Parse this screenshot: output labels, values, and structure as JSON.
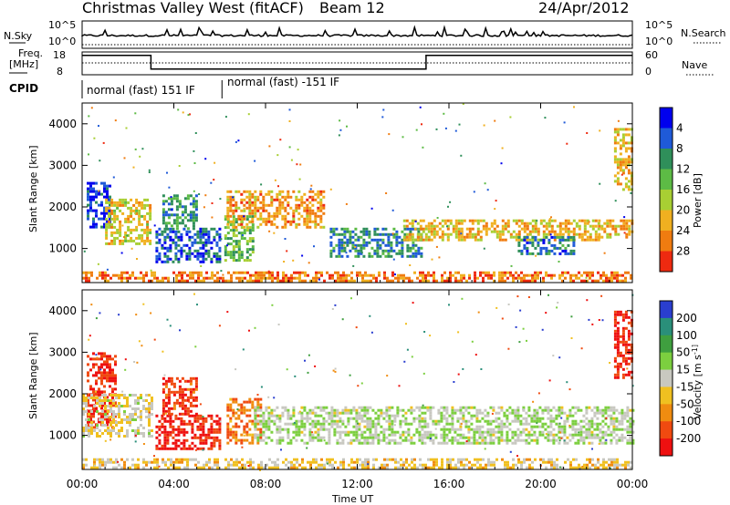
{
  "header": {
    "title": "Christmas Valley West (fitACF)",
    "beam": "Beam 12",
    "date": "24/Apr/2012"
  },
  "top_panels": {
    "nsky_label": "N.Sky",
    "nsearch_label": "N.Search",
    "nsky_ticks": [
      "10^5",
      "10^0"
    ],
    "nsearch_ticks": [
      "10^5",
      "10^0"
    ],
    "freq_label_1": "Freq.",
    "freq_label_2": "[MHz]",
    "freq_ticks": [
      "18",
      "8"
    ],
    "nave_label": "Nave",
    "nave_ticks": [
      "60",
      "0"
    ],
    "cpid_label": "CPID",
    "cpid_segments": [
      {
        "label": "normal (fast) 151 IF",
        "start_hour": 0.0,
        "end_hour": 6.1
      },
      {
        "label": "normal (fast) -151 IF",
        "start_hour": 6.1,
        "end_hour": 24.0
      }
    ],
    "freq_steps": [
      {
        "start_hour": 0.0,
        "end_hour": 3.0,
        "level": 0.85
      },
      {
        "start_hour": 3.0,
        "end_hour": 15.0,
        "level": 0.25
      },
      {
        "start_hour": 15.0,
        "end_hour": 24.0,
        "level": 0.85
      }
    ]
  },
  "x_axis": {
    "label": "Time UT",
    "ticks": [
      "00:00",
      "04:00",
      "08:00",
      "12:00",
      "16:00",
      "20:00",
      "00:00"
    ],
    "range_hours": [
      0,
      24
    ]
  },
  "chart_data": [
    {
      "type": "heatmap",
      "name": "power",
      "ylabel": "Slant Range [km]",
      "yticks": [
        "1000",
        "2000",
        "3000",
        "4000"
      ],
      "ylim": [
        180,
        4500
      ],
      "colorbar_label": "Power [dB]",
      "colorbar_ticks": [
        "4",
        "8",
        "12",
        "16",
        "20",
        "24",
        "28"
      ],
      "colorbar_colors": [
        "#0000ee",
        "#1f5ad8",
        "#2f8f5a",
        "#5dbb45",
        "#a8cf33",
        "#f0b020",
        "#f07c10",
        "#ee2a10"
      ],
      "clusters": [
        {
          "t0": 0.2,
          "t1": 1.2,
          "r0": 1500,
          "r1": 2600,
          "intensity": 0.9
        },
        {
          "t0": 1.0,
          "t1": 3.0,
          "r0": 1100,
          "r1": 2200,
          "intensity": 0.35
        },
        {
          "t0": 3.2,
          "t1": 6.0,
          "r0": 700,
          "r1": 1500,
          "intensity": 0.85
        },
        {
          "t0": 3.5,
          "t1": 5.0,
          "r0": 1500,
          "r1": 2300,
          "intensity": 0.7
        },
        {
          "t0": 6.2,
          "t1": 7.5,
          "r0": 700,
          "r1": 1800,
          "intensity": 0.55
        },
        {
          "t0": 6.3,
          "t1": 10.5,
          "r0": 1500,
          "r1": 2400,
          "intensity": 0.2
        },
        {
          "t0": 10.8,
          "t1": 14.8,
          "r0": 800,
          "r1": 1500,
          "intensity": 0.75
        },
        {
          "t0": 14.0,
          "t1": 22.5,
          "r0": 1200,
          "r1": 1700,
          "intensity": 0.3
        },
        {
          "t0": 19.0,
          "t1": 21.5,
          "r0": 850,
          "r1": 1300,
          "intensity": 0.8
        },
        {
          "t0": 22.5,
          "t1": 24.0,
          "r0": 1300,
          "r1": 1700,
          "intensity": 0.25
        },
        {
          "t0": 23.2,
          "t1": 24.0,
          "r0": 2400,
          "r1": 3900,
          "intensity": 0.3
        },
        {
          "t0": 0.0,
          "t1": 24.0,
          "r0": 200,
          "r1": 450,
          "intensity": 0.15
        }
      ]
    },
    {
      "type": "heatmap",
      "name": "velocity",
      "ylabel": "Slant Range [km]",
      "yticks": [
        "1000",
        "2000",
        "3000",
        "4000"
      ],
      "ylim": [
        180,
        4500
      ],
      "colorbar_label": "Velocity [m s^-1]",
      "colorbar_ticks": [
        "200",
        "100",
        "50",
        "15",
        "-15",
        "-50",
        "-100",
        "-200"
      ],
      "colorbar_colors": [
        "#2a3ecf",
        "#2a8f7a",
        "#3f9f3f",
        "#7ccf3f",
        "#c8c8c0",
        "#f0c020",
        "#f08c10",
        "#f04a10",
        "#ee1010"
      ],
      "clusters": [
        {
          "t0": 0.2,
          "t1": 1.5,
          "r0": 1200,
          "r1": 3000,
          "intensity": 0.95
        },
        {
          "t0": 0.0,
          "t1": 3.0,
          "r0": 1000,
          "r1": 2000,
          "intensity": 0.55
        },
        {
          "t0": 3.2,
          "t1": 6.0,
          "r0": 700,
          "r1": 1500,
          "intensity": 0.97
        },
        {
          "t0": 3.5,
          "t1": 5.0,
          "r0": 1500,
          "r1": 2400,
          "intensity": 0.92
        },
        {
          "t0": 6.3,
          "t1": 7.8,
          "r0": 800,
          "r1": 1900,
          "intensity": 0.8
        },
        {
          "t0": 7.5,
          "t1": 24.0,
          "r0": 800,
          "r1": 1700,
          "intensity": 0.45
        },
        {
          "t0": 23.2,
          "t1": 24.0,
          "r0": 2400,
          "r1": 4000,
          "intensity": 0.95
        },
        {
          "t0": 0.0,
          "t1": 24.0,
          "r0": 200,
          "r1": 450,
          "intensity": 0.6
        }
      ]
    }
  ]
}
